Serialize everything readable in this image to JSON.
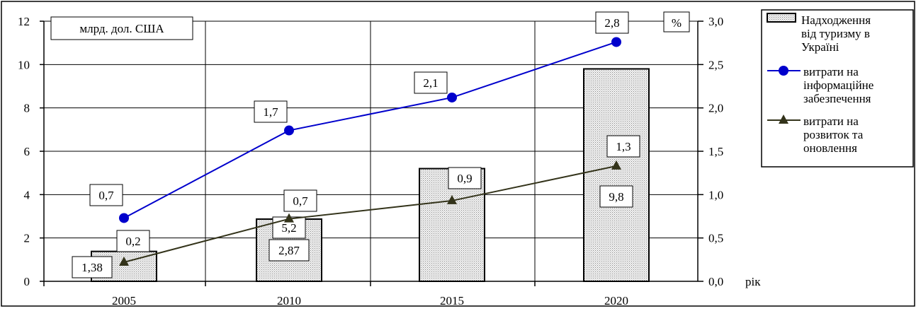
{
  "chart_data": {
    "type": "bar",
    "categories": [
      "2005",
      "2010",
      "2015",
      "2020"
    ],
    "y_left": {
      "unit_label": "млрд. дол. США",
      "range": [
        0,
        12
      ],
      "ticks": [
        "0",
        "2",
        "4",
        "6",
        "8",
        "10",
        "12"
      ]
    },
    "y_right": {
      "unit_label": "%",
      "range": [
        0,
        3
      ],
      "ticks": [
        "0,0",
        "0,5",
        "1,0",
        "1,5",
        "2,0",
        "2,5",
        "3,0"
      ]
    },
    "x_suffix_label": "рік",
    "grid": true,
    "legend_position": "right",
    "series": [
      {
        "name": "Надходження від туризму в Україні",
        "kind": "bar",
        "axis": "left",
        "values": [
          1.38,
          2.87,
          5.2,
          9.8
        ],
        "labels": [
          "1,38",
          "2,87",
          "5,2",
          "9,8"
        ],
        "color": "#d9d9d9"
      },
      {
        "name": "витрати на інформаційне забезпечення",
        "kind": "line",
        "axis": "right",
        "marker": "circle",
        "values": [
          0.73,
          1.74,
          2.12,
          2.76
        ],
        "labels": [
          "0,7",
          "1,7",
          "2,1",
          "2,8"
        ],
        "color": "#0000cc"
      },
      {
        "name": "витрати на розвиток та оновлення",
        "kind": "line",
        "axis": "right",
        "marker": "triangle",
        "values": [
          0.22,
          0.72,
          0.93,
          1.33
        ],
        "labels": [
          "0,2",
          "0,7",
          "0,9",
          "1,3"
        ],
        "color": "#33331a"
      }
    ],
    "legend_lines": [
      [
        "Надходження",
        "від туризму в",
        "Україні"
      ],
      [
        "витрати на",
        "інформаційне",
        "забезпечення"
      ],
      [
        "витрати на",
        "розвиток та",
        "оновлення"
      ]
    ]
  }
}
